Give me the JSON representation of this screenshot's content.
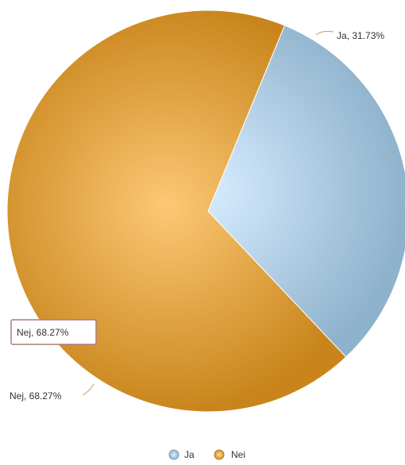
{
  "chart_data": {
    "type": "pie",
    "categories": [
      "Ja",
      "Nei"
    ],
    "values": [
      31.73,
      68.27
    ],
    "data_labels": [
      "Ja, 31.73%",
      "Nej, 68.27%"
    ],
    "legend": [
      "Ja",
      "Nei"
    ],
    "legend_position": "bottom",
    "colors": [
      "#a9c8df",
      "#d99a2d"
    ],
    "tooltip": "Nej, 68.27%"
  }
}
